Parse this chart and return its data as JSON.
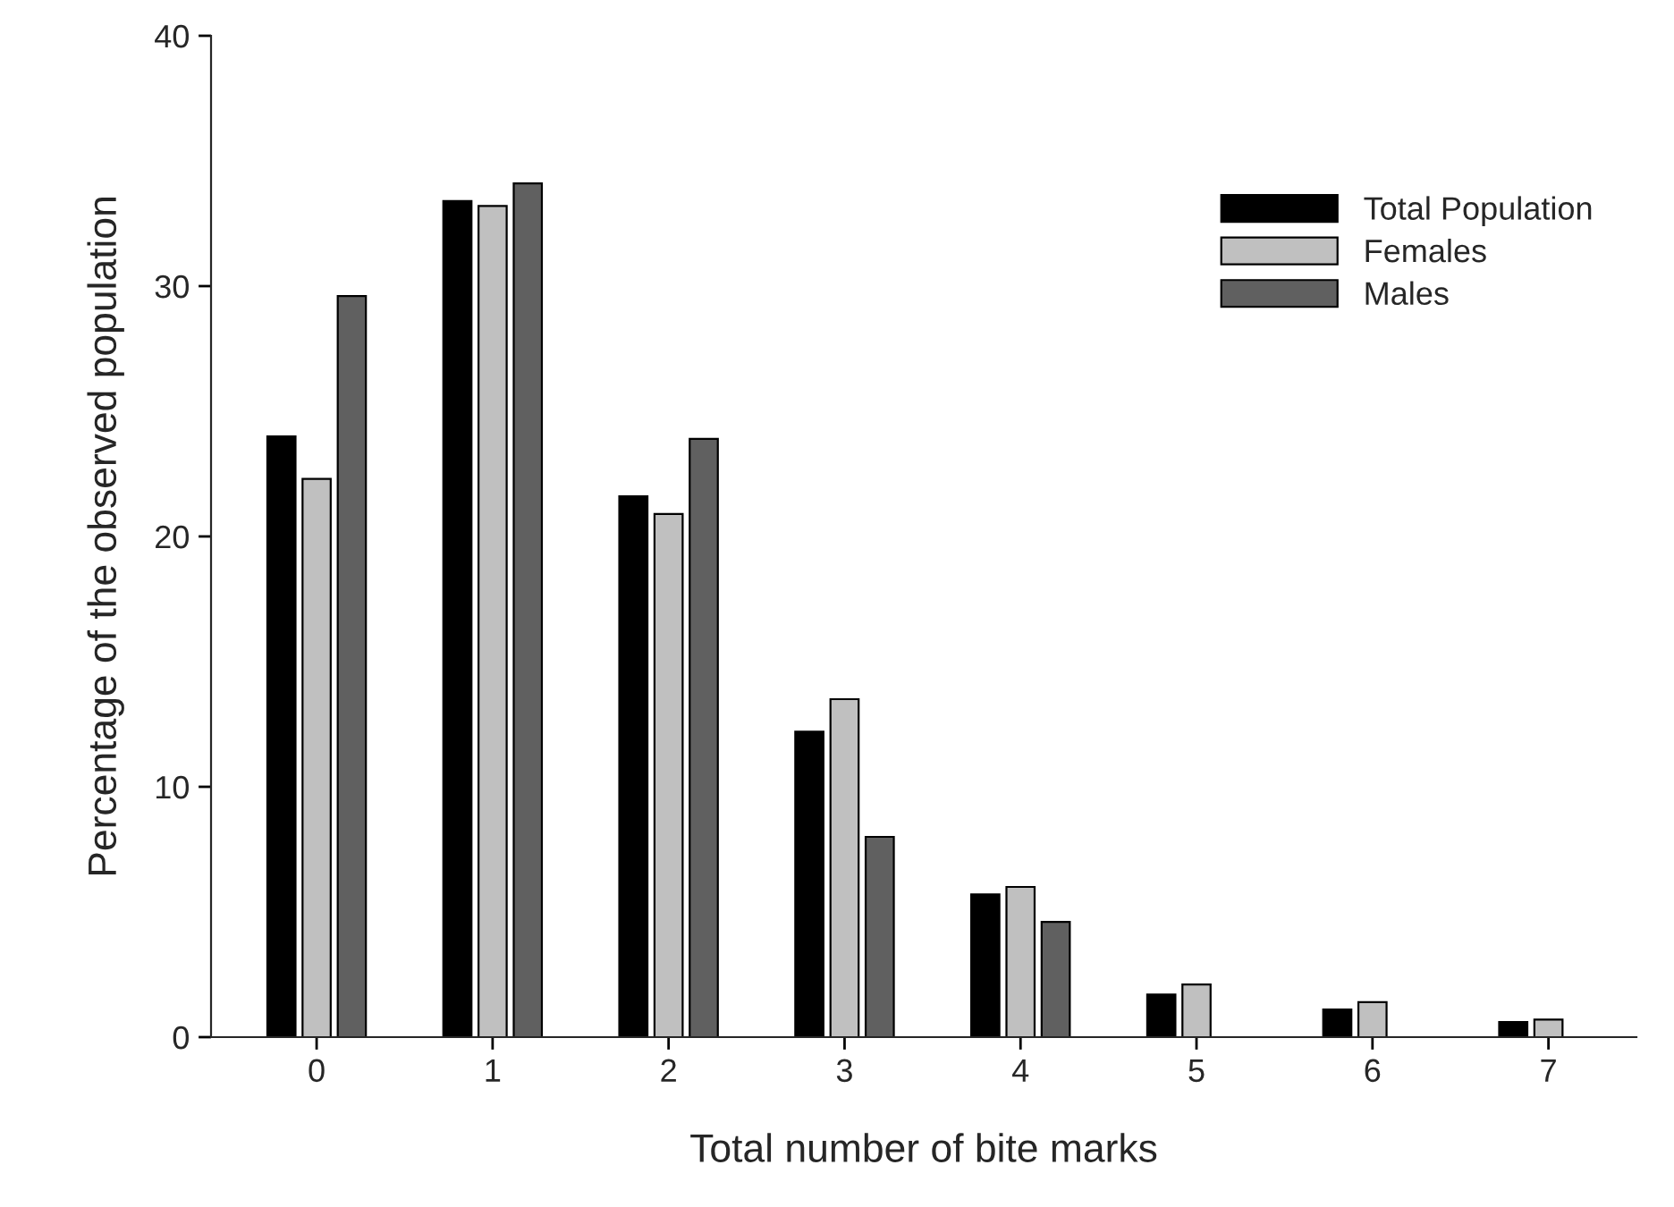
{
  "chart_data": {
    "type": "bar",
    "xlabel": "Total number of bite marks",
    "ylabel": "Percentage of the observed population",
    "categories": [
      "0",
      "1",
      "2",
      "3",
      "4",
      "5",
      "6",
      "7"
    ],
    "series": [
      {
        "name": "Total Population",
        "color": "#000000",
        "values": [
          24.0,
          33.4,
          21.6,
          12.2,
          5.7,
          1.7,
          1.1,
          0.6
        ]
      },
      {
        "name": "Females",
        "color": "#c0c0c0",
        "values": [
          22.3,
          33.2,
          20.9,
          13.5,
          6.0,
          2.1,
          1.4,
          0.7
        ]
      },
      {
        "name": "Males",
        "color": "#606060",
        "values": [
          29.6,
          34.1,
          23.9,
          8.0,
          4.6,
          null,
          null,
          null
        ]
      }
    ],
    "ylim": [
      0,
      40
    ],
    "yticks": [
      0,
      10,
      20,
      30,
      40
    ],
    "grid": false,
    "legend": "top right"
  }
}
